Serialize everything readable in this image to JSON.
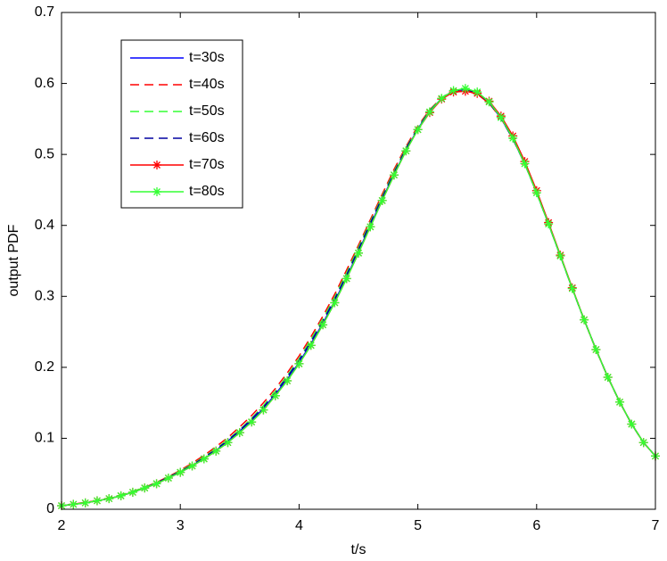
{
  "chart_data": {
    "type": "line",
    "x_label": "t/s",
    "y_label": "output PDF",
    "x": [
      2.0,
      2.1,
      2.2,
      2.3,
      2.4,
      2.5,
      2.6,
      2.7,
      2.8,
      2.9,
      3.0,
      3.1,
      3.2,
      3.3,
      3.4,
      3.5,
      3.6,
      3.7,
      3.8,
      3.9,
      4.0,
      4.1,
      4.2,
      4.3,
      4.4,
      4.5,
      4.6,
      4.7,
      4.8,
      4.9,
      5.0,
      5.1,
      5.2,
      5.3,
      5.4,
      5.5,
      5.6,
      5.7,
      5.8,
      5.9,
      6.0,
      6.1,
      6.2,
      6.3,
      6.4,
      6.5,
      6.6,
      6.7,
      6.8,
      6.9,
      7.0
    ],
    "series": [
      {
        "name": "t=30s",
        "color": "#0000ff",
        "dash": false,
        "marker": null,
        "values": [
          0.005,
          0.007,
          0.009,
          0.012,
          0.015,
          0.019,
          0.024,
          0.03,
          0.036,
          0.044,
          0.052,
          0.061,
          0.071,
          0.083,
          0.096,
          0.11,
          0.125,
          0.142,
          0.162,
          0.183,
          0.207,
          0.233,
          0.262,
          0.293,
          0.327,
          0.363,
          0.4,
          0.437,
          0.472,
          0.506,
          0.536,
          0.561,
          0.579,
          0.59,
          0.591,
          0.587,
          0.573,
          0.551,
          0.522,
          0.487,
          0.446,
          0.402,
          0.357,
          0.311,
          0.267,
          0.225,
          0.186,
          0.151,
          0.12,
          0.094,
          0.075
        ]
      },
      {
        "name": "t=40s",
        "color": "#ff0000",
        "dash": true,
        "marker": null,
        "values": [
          0.005,
          0.007,
          0.01,
          0.012,
          0.016,
          0.02,
          0.025,
          0.031,
          0.038,
          0.046,
          0.055,
          0.065,
          0.076,
          0.088,
          0.101,
          0.116,
          0.132,
          0.15,
          0.17,
          0.192,
          0.216,
          0.243,
          0.272,
          0.303,
          0.337,
          0.372,
          0.408,
          0.444,
          0.479,
          0.511,
          0.54,
          0.563,
          0.58,
          0.589,
          0.59,
          0.585,
          0.572,
          0.551,
          0.522,
          0.487,
          0.446,
          0.402,
          0.357,
          0.311,
          0.267,
          0.225,
          0.186,
          0.151,
          0.12,
          0.094,
          0.075
        ]
      },
      {
        "name": "t=50s",
        "color": "#33ff33",
        "dash": true,
        "marker": null,
        "values": [
          0.005,
          0.007,
          0.009,
          0.012,
          0.015,
          0.02,
          0.025,
          0.031,
          0.037,
          0.045,
          0.054,
          0.063,
          0.074,
          0.085,
          0.098,
          0.112,
          0.128,
          0.146,
          0.166,
          0.188,
          0.212,
          0.239,
          0.268,
          0.299,
          0.333,
          0.369,
          0.405,
          0.441,
          0.476,
          0.509,
          0.538,
          0.562,
          0.58,
          0.59,
          0.592,
          0.587,
          0.573,
          0.551,
          0.522,
          0.487,
          0.446,
          0.402,
          0.357,
          0.311,
          0.267,
          0.225,
          0.186,
          0.151,
          0.12,
          0.094,
          0.075
        ]
      },
      {
        "name": "t=60s",
        "color": "#0000a0",
        "dash": true,
        "marker": null,
        "values": [
          0.005,
          0.007,
          0.009,
          0.012,
          0.015,
          0.019,
          0.024,
          0.03,
          0.037,
          0.045,
          0.053,
          0.062,
          0.073,
          0.084,
          0.097,
          0.111,
          0.127,
          0.144,
          0.164,
          0.186,
          0.21,
          0.236,
          0.265,
          0.296,
          0.33,
          0.366,
          0.403,
          0.439,
          0.474,
          0.508,
          0.537,
          0.561,
          0.579,
          0.59,
          0.591,
          0.587,
          0.573,
          0.551,
          0.522,
          0.487,
          0.446,
          0.402,
          0.357,
          0.311,
          0.267,
          0.225,
          0.186,
          0.151,
          0.12,
          0.094,
          0.075
        ]
      },
      {
        "name": "t=70s",
        "color": "#ff0000",
        "dash": false,
        "marker": "*",
        "values": [
          0.005,
          0.007,
          0.009,
          0.012,
          0.015,
          0.019,
          0.024,
          0.03,
          0.036,
          0.044,
          0.052,
          0.061,
          0.071,
          0.082,
          0.094,
          0.108,
          0.123,
          0.14,
          0.16,
          0.181,
          0.205,
          0.231,
          0.26,
          0.291,
          0.325,
          0.361,
          0.398,
          0.435,
          0.471,
          0.505,
          0.535,
          0.559,
          0.578,
          0.588,
          0.589,
          0.586,
          0.575,
          0.554,
          0.526,
          0.49,
          0.449,
          0.404,
          0.358,
          0.312,
          0.267,
          0.225,
          0.186,
          0.151,
          0.12,
          0.094,
          0.075
        ]
      },
      {
        "name": "t=80s",
        "color": "#33ff33",
        "dash": false,
        "marker": "*",
        "values": [
          0.005,
          0.007,
          0.009,
          0.012,
          0.015,
          0.019,
          0.024,
          0.03,
          0.036,
          0.044,
          0.052,
          0.061,
          0.071,
          0.082,
          0.094,
          0.108,
          0.123,
          0.14,
          0.16,
          0.181,
          0.205,
          0.231,
          0.26,
          0.291,
          0.325,
          0.361,
          0.398,
          0.435,
          0.471,
          0.505,
          0.535,
          0.56,
          0.579,
          0.59,
          0.593,
          0.588,
          0.574,
          0.552,
          0.523,
          0.487,
          0.446,
          0.402,
          0.357,
          0.311,
          0.267,
          0.225,
          0.186,
          0.151,
          0.12,
          0.094,
          0.075
        ]
      }
    ],
    "xlim": [
      2,
      7
    ],
    "xticks": [
      2,
      3,
      4,
      5,
      6,
      7
    ],
    "ylim": [
      0,
      0.7
    ],
    "yticks": [
      0,
      0.1,
      0.2,
      0.3,
      0.4,
      0.5,
      0.6,
      0.7
    ],
    "grid": false,
    "legend": "upper left"
  }
}
